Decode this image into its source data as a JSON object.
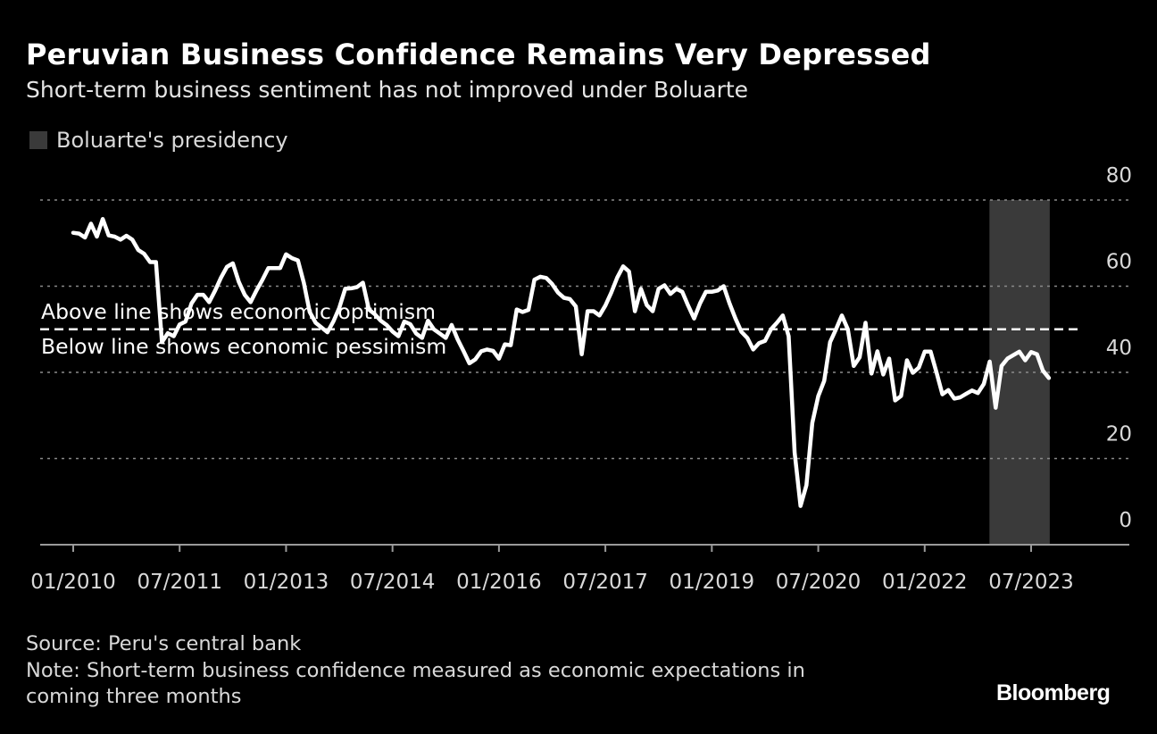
{
  "header": {
    "title": "Peruvian Business Confidence Remains Very Depressed",
    "subtitle": "Short-term business sentiment has not improved under Boluarte"
  },
  "legend": {
    "label": "Boluarte's presidency",
    "color": "#3a3a3a"
  },
  "footer": {
    "source": "Source: Peru's central bank",
    "note_line1": "Note: Short-term business confidence measured as economic expectations in",
    "note_line2": "coming three months",
    "logo": "Bloomberg"
  },
  "chart_data": {
    "type": "line",
    "title": "Peruvian Business Confidence Remains Very Depressed",
    "subtitle": "Short-term business sentiment has not improved under Boluarte",
    "xlabel": "",
    "ylabel": "",
    "ylim": [
      0,
      80
    ],
    "yticks": [
      "0",
      "20",
      "40",
      "60",
      "80"
    ],
    "xticks": [
      "01/2010",
      "07/2011",
      "01/2013",
      "07/2014",
      "01/2016",
      "07/2017",
      "01/2019",
      "07/2020",
      "01/2022",
      "07/2023"
    ],
    "grid": true,
    "line_color": "#ffffff",
    "reference_line": {
      "value": 50,
      "label_above": "Above line shows economic optimism",
      "label_below": "Below line shows economic pessimism"
    },
    "shaded_period": {
      "label": "Boluarte's presidency",
      "start": "2022-12",
      "end": "2023-10",
      "color": "#3a3a3a"
    },
    "series": [
      {
        "points": [
          [
            "2010-01",
            72.4
          ],
          [
            "2010-02",
            72.2
          ],
          [
            "2010-03",
            71.3
          ],
          [
            "2010-04",
            74.5
          ],
          [
            "2010-05",
            71.5
          ],
          [
            "2010-06",
            75.6
          ],
          [
            "2010-07",
            71.8
          ],
          [
            "2010-08",
            71.5
          ],
          [
            "2010-09",
            70.8
          ],
          [
            "2010-10",
            71.7
          ],
          [
            "2010-11",
            70.8
          ],
          [
            "2010-12",
            68.4
          ],
          [
            "2011-01",
            67.5
          ],
          [
            "2011-02",
            65.6
          ],
          [
            "2011-03",
            65.6
          ],
          [
            "2011-04",
            47.0
          ],
          [
            "2011-05",
            49.1
          ],
          [
            "2011-06",
            48.4
          ],
          [
            "2011-07",
            51.1
          ],
          [
            "2011-08",
            51.8
          ],
          [
            "2011-09",
            56.0
          ],
          [
            "2011-10",
            58.0
          ],
          [
            "2011-11",
            58.0
          ],
          [
            "2011-12",
            56.3
          ],
          [
            "2012-01",
            59.0
          ],
          [
            "2012-02",
            62.0
          ],
          [
            "2012-03",
            64.5
          ],
          [
            "2012-04",
            65.3
          ],
          [
            "2012-05",
            61.0
          ],
          [
            "2012-06",
            58.0
          ],
          [
            "2012-07",
            56.3
          ],
          [
            "2012-08",
            59.0
          ],
          [
            "2012-09",
            61.5
          ],
          [
            "2012-10",
            64.2
          ],
          [
            "2012-11",
            64.2
          ],
          [
            "2012-12",
            64.2
          ],
          [
            "2013-01",
            67.4
          ],
          [
            "2013-02",
            66.5
          ],
          [
            "2013-03",
            66.0
          ],
          [
            "2013-04",
            60.8
          ],
          [
            "2013-05",
            54.0
          ],
          [
            "2013-06",
            51.5
          ],
          [
            "2013-07",
            50.4
          ],
          [
            "2013-08",
            49.3
          ],
          [
            "2013-09",
            51.8
          ],
          [
            "2013-10",
            55.0
          ],
          [
            "2013-11",
            59.4
          ],
          [
            "2013-12",
            59.5
          ],
          [
            "2014-01",
            59.8
          ],
          [
            "2014-02",
            60.8
          ],
          [
            "2014-03",
            54.6
          ],
          [
            "2014-04",
            53.5
          ],
          [
            "2014-05",
            52.0
          ],
          [
            "2014-06",
            51.0
          ],
          [
            "2014-07",
            49.5
          ],
          [
            "2014-08",
            48.4
          ],
          [
            "2014-09",
            51.8
          ],
          [
            "2014-10",
            51.2
          ],
          [
            "2014-11",
            49.0
          ],
          [
            "2014-12",
            48.0
          ],
          [
            "2015-01",
            52.0
          ],
          [
            "2015-02",
            50.0
          ],
          [
            "2015-03",
            49.0
          ],
          [
            "2015-04",
            48.0
          ],
          [
            "2015-05",
            51.0
          ],
          [
            "2015-06",
            47.7
          ],
          [
            "2015-07",
            45.0
          ],
          [
            "2015-08",
            42.1
          ],
          [
            "2015-09",
            43.0
          ],
          [
            "2015-10",
            44.9
          ],
          [
            "2015-11",
            45.3
          ],
          [
            "2015-12",
            45.0
          ],
          [
            "2016-01",
            43.2
          ],
          [
            "2016-02",
            46.5
          ],
          [
            "2016-03",
            46.3
          ],
          [
            "2016-04",
            54.6
          ],
          [
            "2016-05",
            54.0
          ],
          [
            "2016-06",
            54.5
          ],
          [
            "2016-07",
            61.5
          ],
          [
            "2016-08",
            62.2
          ],
          [
            "2016-09",
            61.9
          ],
          [
            "2016-10",
            60.5
          ],
          [
            "2016-11",
            58.5
          ],
          [
            "2016-12",
            57.3
          ],
          [
            "2017-01",
            57.0
          ],
          [
            "2017-02",
            55.3
          ],
          [
            "2017-03",
            44.2
          ],
          [
            "2017-04",
            54.2
          ],
          [
            "2017-05",
            54.2
          ],
          [
            "2017-06",
            53.2
          ],
          [
            "2017-07",
            55.5
          ],
          [
            "2017-08",
            58.5
          ],
          [
            "2017-09",
            62.0
          ],
          [
            "2017-10",
            64.6
          ],
          [
            "2017-11",
            63.4
          ],
          [
            "2017-12",
            54.2
          ],
          [
            "2018-01",
            59.4
          ],
          [
            "2018-02",
            55.6
          ],
          [
            "2018-03",
            54.2
          ],
          [
            "2018-04",
            59.4
          ],
          [
            "2018-05",
            60.2
          ],
          [
            "2018-06",
            58.2
          ],
          [
            "2018-07",
            59.4
          ],
          [
            "2018-08",
            58.7
          ],
          [
            "2018-09",
            55.5
          ],
          [
            "2018-10",
            52.5
          ],
          [
            "2018-11",
            56.0
          ],
          [
            "2018-12",
            58.7
          ],
          [
            "2019-01",
            58.7
          ],
          [
            "2019-02",
            59.0
          ],
          [
            "2019-03",
            60.0
          ],
          [
            "2019-04",
            56.0
          ],
          [
            "2019-05",
            52.5
          ],
          [
            "2019-06",
            49.4
          ],
          [
            "2019-07",
            48.0
          ],
          [
            "2019-08",
            45.3
          ],
          [
            "2019-09",
            46.8
          ],
          [
            "2019-10",
            47.3
          ],
          [
            "2019-11",
            50.0
          ],
          [
            "2019-12",
            51.5
          ],
          [
            "2020-01",
            53.2
          ],
          [
            "2020-02",
            48.4
          ],
          [
            "2020-03",
            21.4
          ],
          [
            "2020-04",
            9.0
          ],
          [
            "2020-05",
            13.8
          ],
          [
            "2020-06",
            28.3
          ],
          [
            "2020-07",
            34.5
          ],
          [
            "2020-08",
            38.0
          ],
          [
            "2020-09",
            47.0
          ],
          [
            "2020-10",
            50.0
          ],
          [
            "2020-11",
            53.2
          ],
          [
            "2020-12",
            50.0
          ],
          [
            "2021-01",
            41.5
          ],
          [
            "2021-02",
            43.5
          ],
          [
            "2021-03",
            51.5
          ],
          [
            "2021-04",
            39.7
          ],
          [
            "2021-05",
            44.9
          ],
          [
            "2021-06",
            39.5
          ],
          [
            "2021-07",
            43.2
          ],
          [
            "2021-08",
            33.5
          ],
          [
            "2021-09",
            34.5
          ],
          [
            "2021-10",
            42.8
          ],
          [
            "2021-11",
            39.9
          ],
          [
            "2021-12",
            41.1
          ],
          [
            "2022-01",
            44.8
          ],
          [
            "2022-02",
            44.8
          ],
          [
            "2022-03",
            40.0
          ],
          [
            "2022-04",
            34.9
          ],
          [
            "2022-05",
            35.9
          ],
          [
            "2022-06",
            33.9
          ],
          [
            "2022-07",
            34.2
          ],
          [
            "2022-08",
            35.0
          ],
          [
            "2022-09",
            35.8
          ],
          [
            "2022-10",
            35.2
          ],
          [
            "2022-11",
            37.3
          ],
          [
            "2022-12",
            42.5
          ],
          [
            "2023-01",
            31.8
          ],
          [
            "2023-02",
            41.5
          ],
          [
            "2023-03",
            43.2
          ],
          [
            "2023-04",
            44.0
          ],
          [
            "2023-05",
            44.8
          ],
          [
            "2023-06",
            42.8
          ],
          [
            "2023-07",
            44.7
          ],
          [
            "2023-08",
            44.2
          ],
          [
            "2023-09",
            40.4
          ],
          [
            "2023-10",
            38.7
          ]
        ]
      }
    ]
  }
}
